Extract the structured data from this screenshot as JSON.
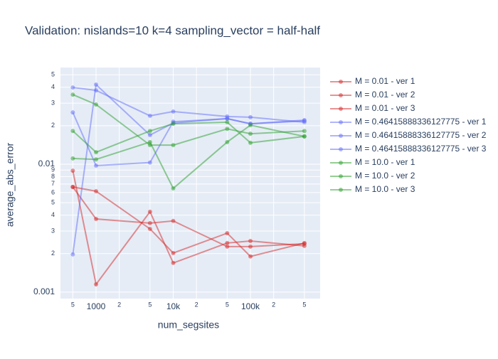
{
  "chart_data": {
    "type": "line",
    "title": "Validation: nislands=10 k=4 sampling_vector = half-half",
    "x_label": "num_segsites",
    "y_label": "average_abs_error",
    "x": [
      500,
      1000,
      5000,
      10000,
      50000,
      100000,
      500000
    ],
    "x_log": true,
    "y_log": true,
    "grid": true,
    "legend": "right",
    "xlim": [
      346,
      800000
    ],
    "ylim": [
      0.00089,
      0.057
    ],
    "xticks": [
      {
        "value": 500,
        "label": "5"
      },
      1000,
      {
        "value": 2000,
        "label": "2"
      },
      {
        "value": 5000,
        "label": "5"
      },
      {
        "value": 10000,
        "label": "10k"
      },
      {
        "value": 20000,
        "label": "2"
      },
      {
        "value": 50000,
        "label": "5"
      },
      {
        "value": 100000,
        "label": "100k"
      },
      {
        "value": 200000,
        "label": "2"
      },
      {
        "value": 500000,
        "label": "5"
      }
    ],
    "yticks": [
      0.001,
      {
        "value": 0.002,
        "label": "2"
      },
      {
        "value": 0.003,
        "label": "3"
      },
      {
        "value": 0.004,
        "label": "4"
      },
      {
        "value": 0.005,
        "label": "5"
      },
      {
        "value": 0.006,
        "label": "6"
      },
      {
        "value": 0.007,
        "label": "7"
      },
      {
        "value": 0.008,
        "label": "8"
      },
      {
        "value": 0.009,
        "label": "9"
      },
      0.01,
      {
        "value": 0.02,
        "label": "2"
      },
      {
        "value": 0.03,
        "label": "3"
      },
      {
        "value": 0.04,
        "label": "4"
      },
      {
        "value": 0.05,
        "label": "5"
      }
    ],
    "series": [
      {
        "name": "M = 0.01 - ver 1",
        "color": "#d62728",
        "values": [
          0.00664,
          0.00615,
          0.00312,
          0.00202,
          0.00289,
          0.0019,
          0.00242
        ]
      },
      {
        "name": "M = 0.01 - ver 2",
        "color": "#d62728",
        "values": [
          0.0089,
          0.00115,
          0.00425,
          0.00169,
          0.00242,
          0.00251,
          0.0023
        ]
      },
      {
        "name": "M = 0.01 - ver 3",
        "color": "#d62728",
        "values": [
          0.00664,
          0.00373,
          0.00346,
          0.0036,
          0.00227,
          0.00227,
          0.00239
        ]
      },
      {
        "name": "M = 0.46415888336127775 - ver 1",
        "color": "#636efa",
        "values": [
          0.0398,
          0.0378,
          0.0239,
          0.0258,
          0.0236,
          0.0233,
          0.0213
        ]
      },
      {
        "name": "M = 0.46415888336127775 - ver 2",
        "color": "#636efa",
        "values": [
          0.0254,
          0.00975,
          0.0103,
          0.0215,
          0.0227,
          0.0207,
          0.0221
        ]
      },
      {
        "name": "M = 0.46415888336127775 - ver 3",
        "color": "#636efa",
        "values": [
          0.00197,
          0.0419,
          0.0169,
          0.021,
          0.0227,
          0.0207,
          0.0218
        ]
      },
      {
        "name": "M = 10.0 - ver 1",
        "color": "#2ca02c",
        "values": [
          0.035,
          0.0293,
          0.0141,
          0.0141,
          0.0189,
          0.0173,
          0.0182
        ]
      },
      {
        "name": "M = 10.0 - ver 2",
        "color": "#2ca02c",
        "values": [
          0.0182,
          0.0124,
          0.0182,
          0.0207,
          0.0213,
          0.0147,
          0.0165
        ]
      },
      {
        "name": "M = 10.0 - ver 3",
        "color": "#2ca02c",
        "values": [
          0.0111,
          0.0109,
          0.0149,
          0.00647,
          0.0149,
          0.0202,
          0.0165
        ]
      }
    ]
  }
}
